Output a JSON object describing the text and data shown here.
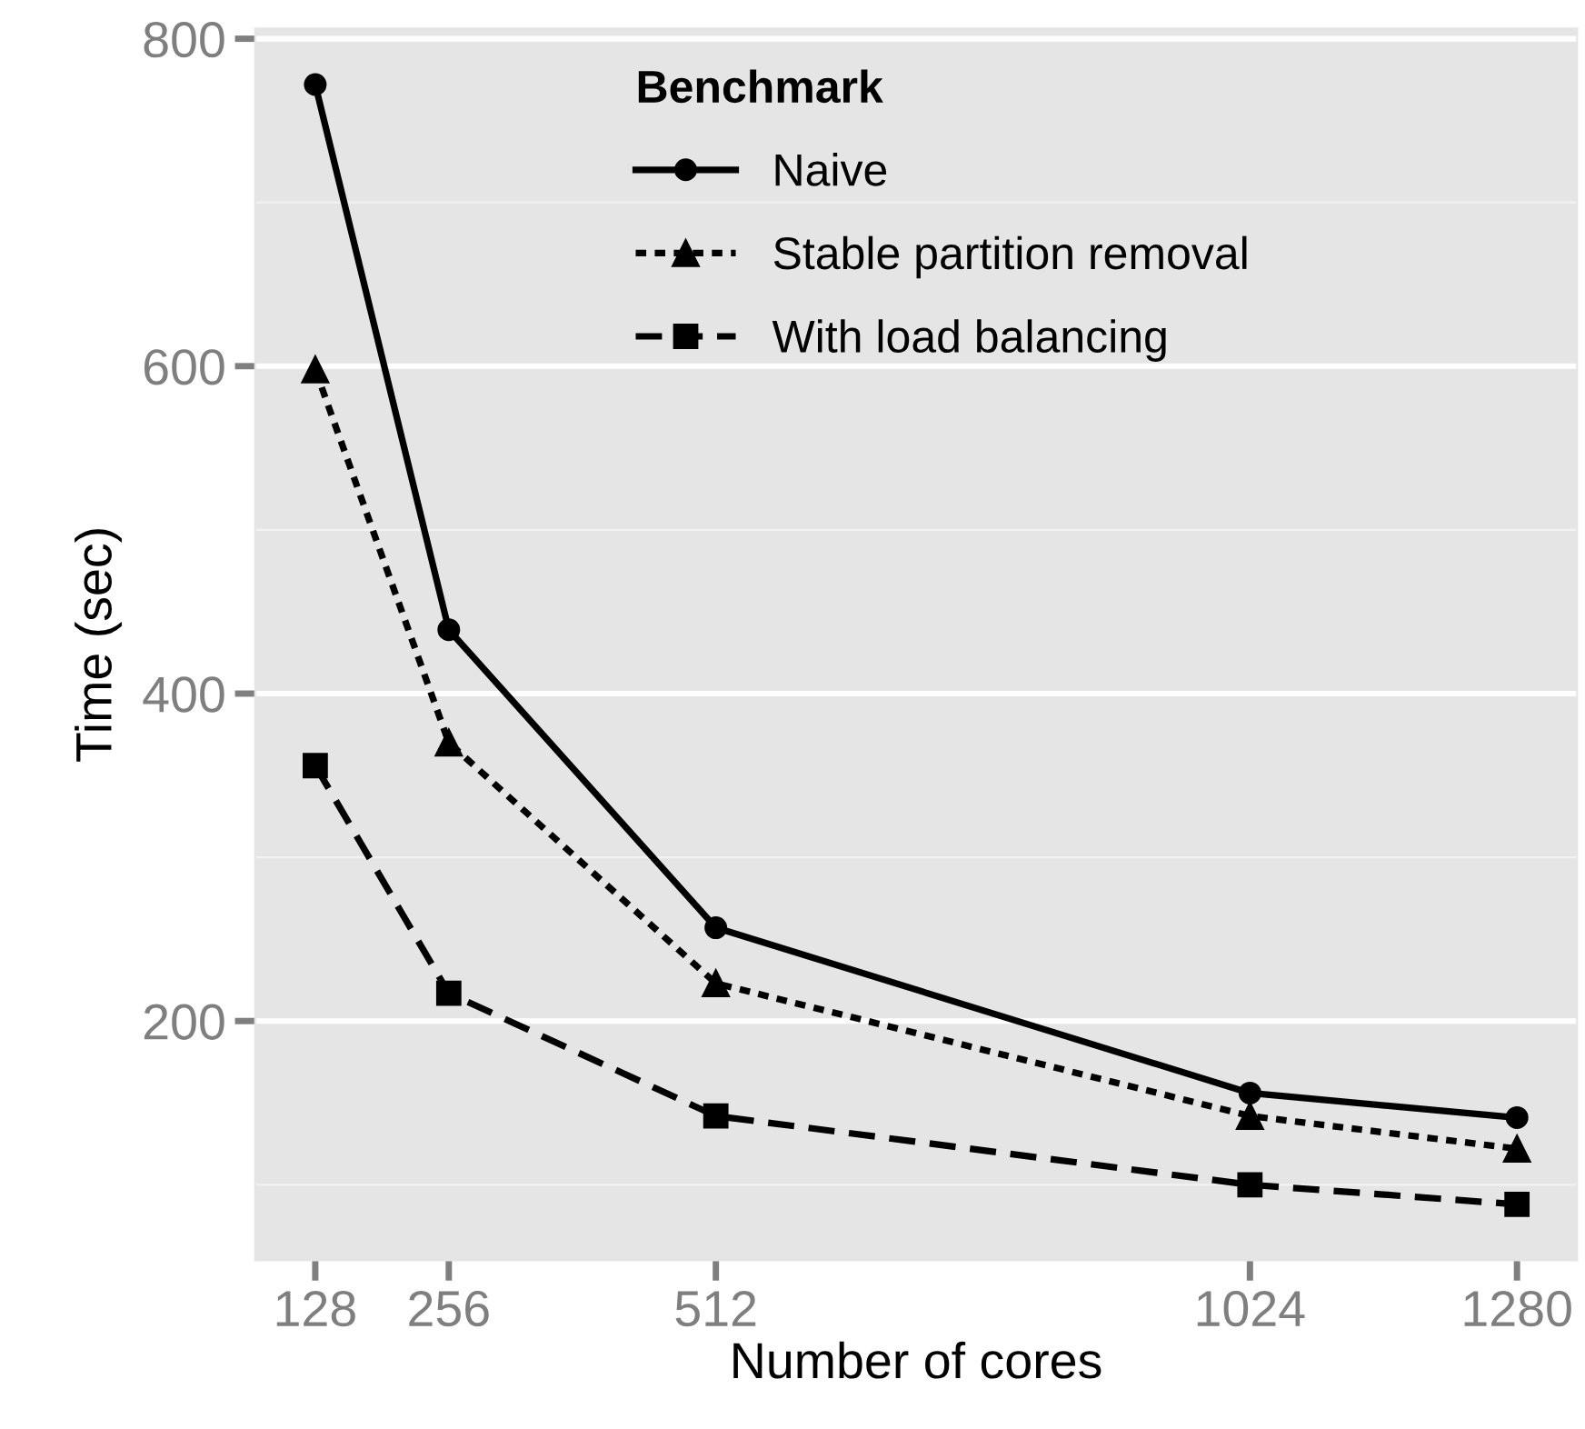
{
  "chart_data": {
    "type": "line",
    "xlabel": "Number of cores",
    "ylabel": "Time (sec)",
    "legend_title": "Benchmark",
    "x": [
      128,
      256,
      512,
      1024,
      1280
    ],
    "series": [
      {
        "name": "Naive",
        "color": "#000000",
        "marker": "circle",
        "line_style": "solid",
        "values": [
          772,
          439,
          257,
          156,
          141
        ]
      },
      {
        "name": "Stable partition removal",
        "color": "#000000",
        "marker": "triangle",
        "line_style": "dotted",
        "values": [
          598,
          370,
          223,
          142,
          122
        ]
      },
      {
        "name": "With load balancing",
        "color": "#000000",
        "marker": "square",
        "line_style": "dashed",
        "values": [
          356,
          217,
          142,
          100,
          88
        ]
      }
    ],
    "xlim": [
      70.4,
      1337.6
    ],
    "xticks": [
      128,
      256,
      512,
      1024,
      1280
    ],
    "ylim": [
      53.8,
      806.2
    ],
    "yticks": [
      200,
      400,
      600,
      800
    ],
    "grid": "y",
    "legend": "top"
  }
}
